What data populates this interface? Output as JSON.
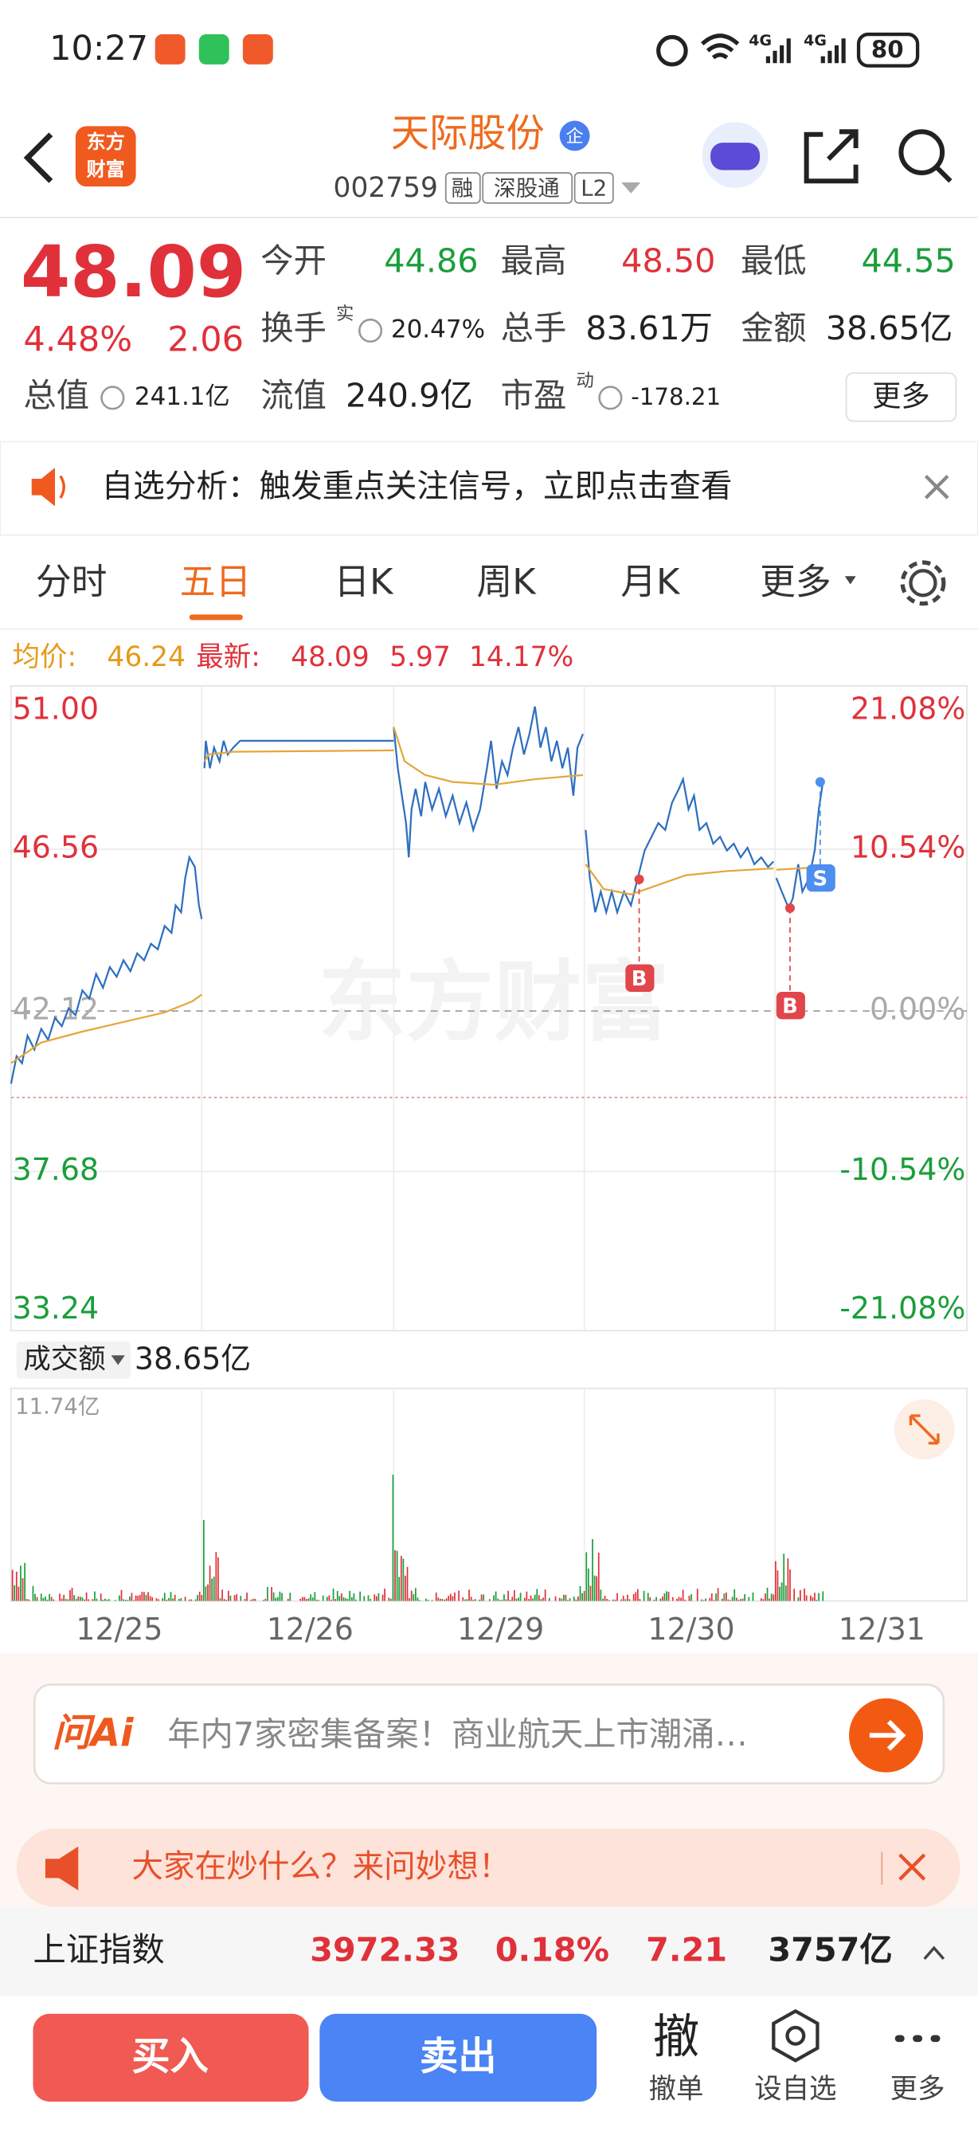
{
  "status_bar": {
    "time": "10:27",
    "network": [
      "4G",
      "4G"
    ],
    "battery": "80"
  },
  "header": {
    "logo": [
      "东方",
      "财富"
    ],
    "title": "天际股份",
    "badge": "企",
    "code": "002759",
    "tags": [
      "融",
      "深股通",
      "L2"
    ]
  },
  "quote": {
    "price": "48.09",
    "change_pct": "4.48%",
    "change": "2.06",
    "stats": [
      {
        "label": "今开",
        "value": "44.86"
      },
      {
        "label": "最高",
        "value": "48.50"
      },
      {
        "label": "最低",
        "value": "44.55"
      },
      {
        "label": "换手",
        "sup": "实",
        "value": "20.47%"
      },
      {
        "label": "总手",
        "value": "83.61万"
      },
      {
        "label": "金额",
        "value": "38.65亿"
      },
      {
        "label": "总值",
        "value": "241.1亿"
      },
      {
        "label": "流值",
        "value": "240.9亿"
      },
      {
        "label": "市盈",
        "sup": "动",
        "value": "-178.21"
      }
    ],
    "more_button": "更多"
  },
  "notice": "自选分析：触发重点关注信号，立即点击查看",
  "tabs": [
    "分时",
    "五日",
    "日K",
    "周K",
    "月K",
    "更多"
  ],
  "chart": {
    "avg_label": "均价:",
    "avg": "46.24",
    "latest_label": "最新:",
    "latest": "48.09",
    "change": "5.97",
    "change_pct": "14.17%",
    "price_ticks": [
      "51.00",
      "46.56",
      "42.12",
      "37.68",
      "33.24"
    ],
    "pct_ticks": [
      "21.08%",
      "10.54%",
      "0.00%",
      "-10.54%",
      "-21.08%"
    ],
    "watermark": "东方财富",
    "markers": [
      "B",
      "B",
      "S"
    ]
  },
  "volume": {
    "selector": "成交额",
    "total": "38.65亿",
    "max": "11.74亿"
  },
  "dates": [
    "12/25",
    "12/26",
    "12/29",
    "12/30",
    "12/31"
  ],
  "ai": {
    "logo": "问Ai",
    "text": "年内7家密集备案！商业航天上市潮涌…"
  },
  "promo": "大家在炒什么？来问妙想！",
  "index": {
    "name": "上证指数",
    "value": "3972.33",
    "change_pct": "0.18%",
    "change": "7.21",
    "amount": "3757亿"
  },
  "actions": {
    "buy": "买入",
    "sell": "卖出",
    "cancel_icon": "撤",
    "cancel": "撤单",
    "watchlist": "设自选",
    "more": "更多"
  }
}
